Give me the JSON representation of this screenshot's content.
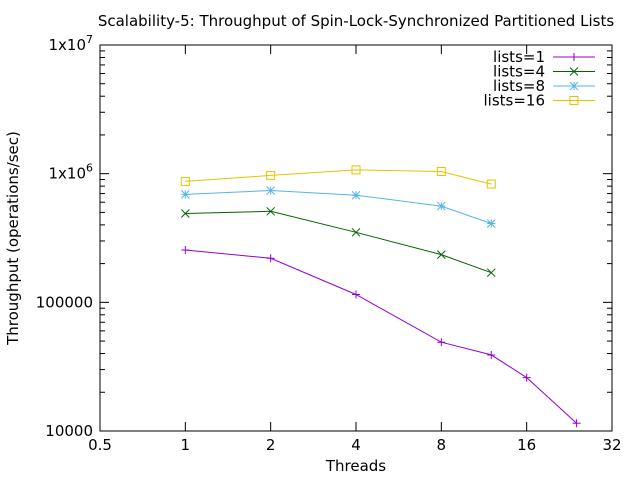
{
  "chart_data": {
    "type": "line",
    "title": "Scalability-5: Throughput of Spin-Lock-Synchronized Partitioned Lists",
    "xlabel": "Threads",
    "ylabel": "Throughput (operations/sec)",
    "x_scale": "log2",
    "y_scale": "log10",
    "xlim": [
      0.5,
      32
    ],
    "ylim": [
      10000,
      10000000
    ],
    "x_ticks": [
      {
        "value": 0.5,
        "label": "0.5"
      },
      {
        "value": 1,
        "label": "1"
      },
      {
        "value": 2,
        "label": "2"
      },
      {
        "value": 4,
        "label": "4"
      },
      {
        "value": 8,
        "label": "8"
      },
      {
        "value": 16,
        "label": "16"
      },
      {
        "value": 32,
        "label": "32"
      }
    ],
    "y_ticks": [
      {
        "value": 10000,
        "label": "10000",
        "base": "",
        "exp": ""
      },
      {
        "value": 100000,
        "label": "100000",
        "base": "",
        "exp": ""
      },
      {
        "value": 1000000,
        "label": "",
        "base": "1x10",
        "exp": "6"
      },
      {
        "value": 10000000,
        "label": "",
        "base": "1x10",
        "exp": "7"
      }
    ],
    "grid": false,
    "legend_position": "top-right",
    "series": [
      {
        "name": "lists=1",
        "marker": "plus",
        "color": "#9400d3",
        "points": [
          [
            1,
            255000
          ],
          [
            2,
            220000
          ],
          [
            4,
            115000
          ],
          [
            8,
            49000
          ],
          [
            12,
            39000
          ],
          [
            16,
            26000
          ],
          [
            24,
            11500
          ]
        ]
      },
      {
        "name": "lists=4",
        "marker": "cross",
        "color": "#006400",
        "points": [
          [
            1,
            490000
          ],
          [
            2,
            510000
          ],
          [
            4,
            350000
          ],
          [
            8,
            235000
          ],
          [
            12,
            170000
          ]
        ]
      },
      {
        "name": "lists=8",
        "marker": "star",
        "color": "#56b4e9",
        "points": [
          [
            1,
            690000
          ],
          [
            2,
            740000
          ],
          [
            4,
            680000
          ],
          [
            8,
            560000
          ],
          [
            12,
            410000
          ]
        ]
      },
      {
        "name": "lists=16",
        "marker": "square",
        "color": "#e6c300",
        "points": [
          [
            1,
            870000
          ],
          [
            2,
            970000
          ],
          [
            4,
            1070000
          ],
          [
            8,
            1040000
          ],
          [
            12,
            830000
          ]
        ]
      }
    ]
  }
}
